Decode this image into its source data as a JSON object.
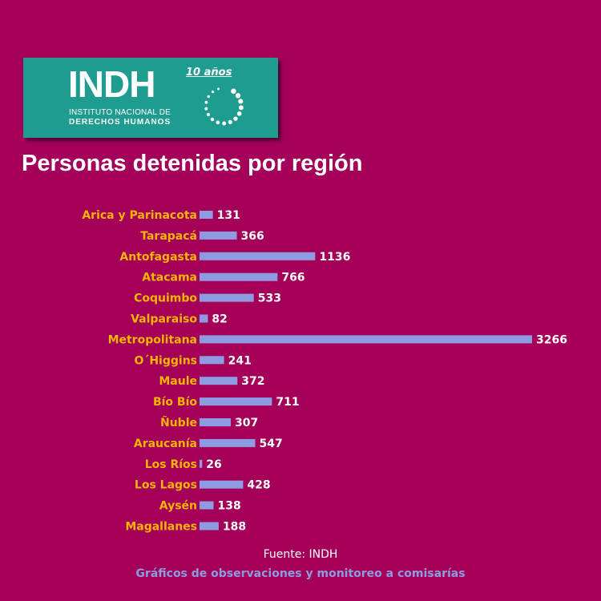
{
  "logo": {
    "name": "INDH",
    "line1": "INSTITUTO NACIONAL DE",
    "line2": "DERECHOS HUMANOS",
    "anniversary": "10 años"
  },
  "colors": {
    "background": "#A4005A",
    "logo_bg": "#1F9C90",
    "label": "#F7B500",
    "bar": "#8E9BE0",
    "value": "#FFFFFF"
  },
  "chart_data": {
    "type": "bar",
    "orientation": "horizontal",
    "title": "Personas detenidas por región",
    "categories": [
      "Arica y Parinacota",
      "Tarapacá",
      "Antofagasta",
      "Atacama",
      "Coquimbo",
      "Valparaiso",
      "Metropolitana",
      "O´Higgins",
      "Maule",
      "Bío Bío",
      "Ñuble",
      "Araucanía",
      "Los Ríos",
      "Los Lagos",
      "Aysén",
      "Magallanes"
    ],
    "values": [
      131,
      366,
      1136,
      766,
      533,
      82,
      3266,
      241,
      372,
      711,
      307,
      547,
      26,
      428,
      138,
      188
    ],
    "xlim": [
      0,
      3266
    ],
    "grid": false
  },
  "footer": {
    "source": "Fuente: INDH",
    "subtitle": "Gráficos de observaciones y monitoreo a comisarías"
  }
}
